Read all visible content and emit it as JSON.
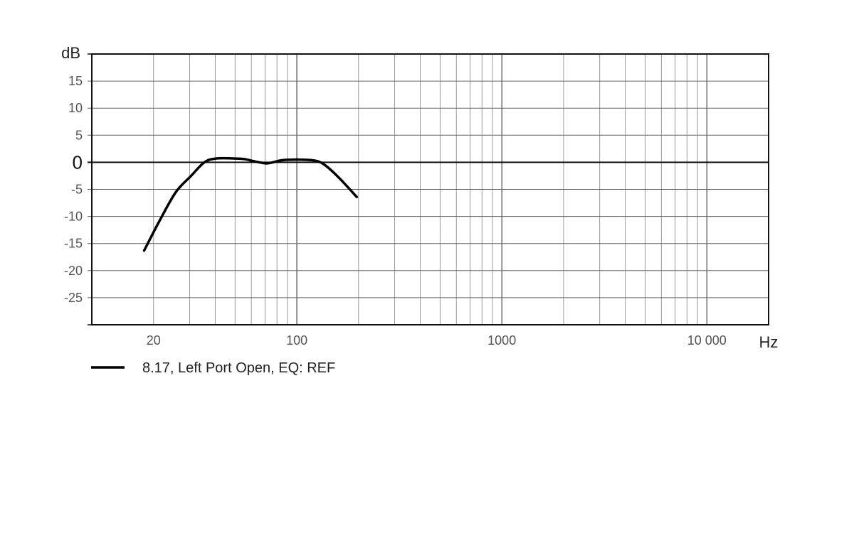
{
  "chart_data": {
    "type": "line",
    "title": "",
    "xlabel": "Hz",
    "ylabel": "dB",
    "xscale": "log",
    "xlim": [
      10,
      20000
    ],
    "ylim": [
      -30,
      20
    ],
    "grid": true,
    "x_tick_labels": [
      {
        "value": 20,
        "label": "20"
      },
      {
        "value": 100,
        "label": "100"
      },
      {
        "value": 1000,
        "label": "1000"
      },
      {
        "value": 10000,
        "label": "10 000"
      }
    ],
    "y_tick_labels": [
      {
        "value": 15,
        "label": "15"
      },
      {
        "value": 10,
        "label": "10"
      },
      {
        "value": 5,
        "label": "5"
      },
      {
        "value": 0,
        "label": "0"
      },
      {
        "value": -5,
        "label": "-5"
      },
      {
        "value": -10,
        "label": "-10"
      },
      {
        "value": -15,
        "label": "-15"
      },
      {
        "value": -20,
        "label": "-20"
      },
      {
        "value": -25,
        "label": "-25"
      }
    ],
    "legend_position": "bottom-left",
    "series": [
      {
        "name": "8.17, Left Port Open, EQ: REF",
        "color": "#000000",
        "x": [
          18,
          21.4,
          25.7,
          30.5,
          35.4,
          40.4,
          50,
          55.5,
          61.8,
          70.6,
          76.5,
          85,
          105,
          123,
          137,
          161,
          196
        ],
        "y": [
          -16.3,
          -10.8,
          -5.5,
          -2.5,
          0,
          0.7,
          0.7,
          0.6,
          0.2,
          -0.2,
          0,
          0.4,
          0.5,
          0.3,
          -0.5,
          -2.9,
          -6.4
        ]
      }
    ]
  }
}
